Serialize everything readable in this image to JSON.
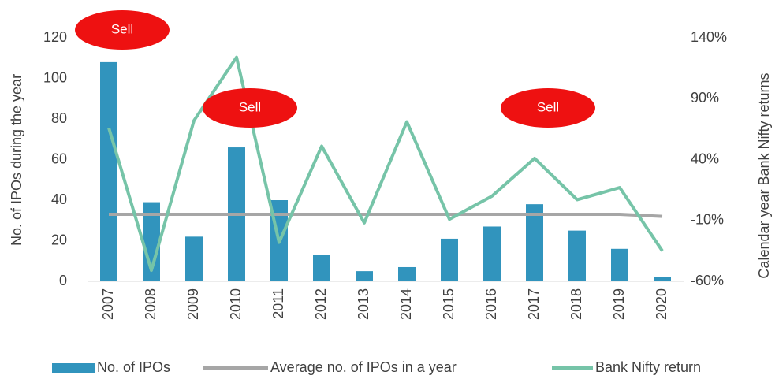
{
  "chart_data": {
    "type": "bar",
    "categories": [
      "2007",
      "2008",
      "2009",
      "2010",
      "2011",
      "2012",
      "2013",
      "2014",
      "2015",
      "2016",
      "2017",
      "2018",
      "2019",
      "2020"
    ],
    "series": [
      {
        "name": "No. of IPOs",
        "type": "bar",
        "color": "#3194bd",
        "values": [
          108,
          39,
          22,
          66,
          40,
          13,
          5,
          7,
          21,
          27,
          38,
          25,
          16,
          2
        ]
      },
      {
        "name": "Average no. of IPOs in a year",
        "type": "line",
        "color": "#a6a6a6",
        "values": [
          33,
          33,
          33,
          33,
          33,
          33,
          33,
          33,
          33,
          33,
          33,
          33,
          33,
          32
        ]
      },
      {
        "name": "Bank Nifty return",
        "type": "line",
        "axis": "y2",
        "color": "#76c4a8",
        "values": [
          66,
          -51,
          72,
          124,
          -28,
          51,
          -12,
          71,
          -9,
          10,
          41,
          7,
          17,
          -35
        ]
      }
    ],
    "ylabel": "No. of IPOs during the year",
    "y2label": "Calendar year Bank Nifty returns",
    "ylim": [
      0,
      120
    ],
    "yticks": [
      0,
      20,
      40,
      60,
      80,
      100,
      120
    ],
    "y2lim": [
      -60,
      140
    ],
    "y2ticks": [
      {
        "value": -60,
        "label": "-60%"
      },
      {
        "value": -10,
        "label": "-10%"
      },
      {
        "value": 40,
        "label": "40%"
      },
      {
        "value": 90,
        "label": "90%"
      },
      {
        "value": 140,
        "label": "140%"
      }
    ],
    "annotations": [
      {
        "text": "Sell",
        "x": "2007"
      },
      {
        "text": "Sell",
        "x": "2010"
      },
      {
        "text": "Sell",
        "x": "2017"
      }
    ],
    "legend": "bottom"
  }
}
